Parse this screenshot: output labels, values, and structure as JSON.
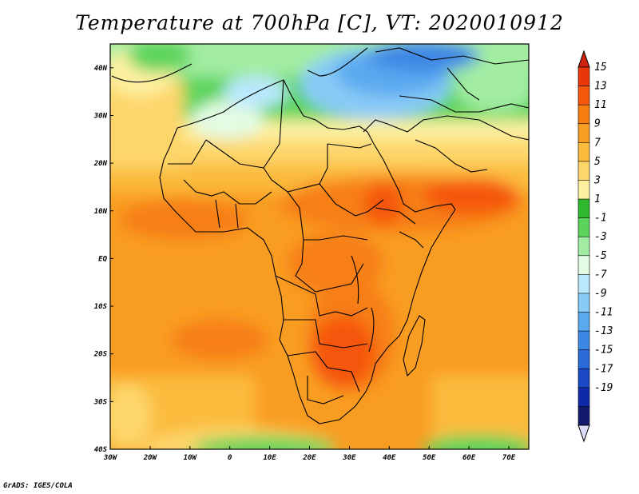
{
  "title": "Temperature at 700hPa [C], VT: 2020010912",
  "credit": "GrADS: IGES/COLA",
  "map": {
    "lon_ticks": [
      "30W",
      "20W",
      "10W",
      "0",
      "10E",
      "20E",
      "30E",
      "40E",
      "50E",
      "60E",
      "70E"
    ],
    "lat_ticks": [
      "40N",
      "30N",
      "20N",
      "10N",
      "EQ",
      "10S",
      "20S",
      "30S",
      "40S"
    ],
    "lon_range": [
      -30,
      75
    ],
    "lat_range": [
      -40,
      45
    ]
  },
  "colorbar": {
    "labels": [
      "15",
      "13",
      "11",
      "9",
      "7",
      "5",
      "3",
      "1",
      "-1",
      "-3",
      "-5",
      "-7",
      "-9",
      "-11",
      "-13",
      "-15",
      "-17",
      "-19"
    ],
    "colors": [
      "#e8380a",
      "#f5570c",
      "#f77f12",
      "#f99d22",
      "#fbbb3c",
      "#fdd66a",
      "#fdf0a0",
      "#2fb82f",
      "#5cd45c",
      "#a3eda3",
      "#e2fbe2",
      "#b9e8fd",
      "#88cbf6",
      "#5aa9ef",
      "#3e88e5",
      "#2a69d8",
      "#1b48c6",
      "#0f2aa8",
      "#121a6e"
    ],
    "top_arrow_color": "#d02010",
    "bottom_arrow_color": "#dcdcfa"
  }
}
